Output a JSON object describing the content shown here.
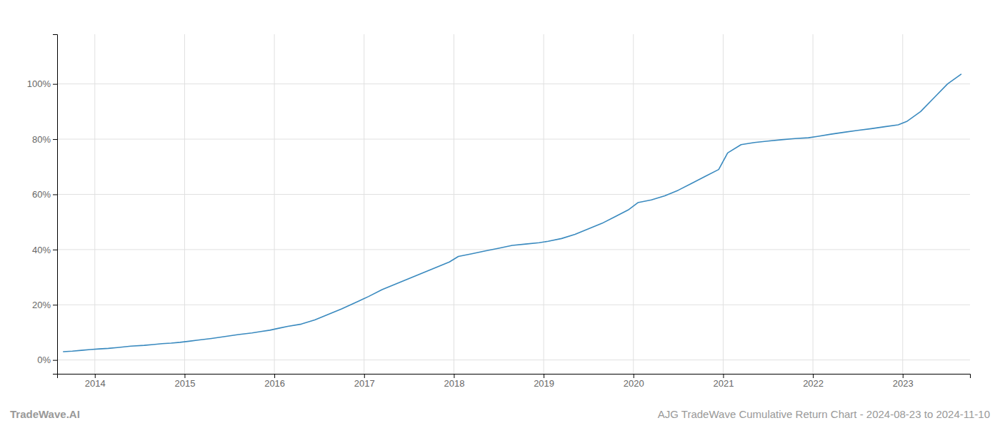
{
  "chart_data": {
    "type": "line",
    "title": "AJG TradeWave Cumulative Return Chart - 2024-08-23 to 2024-11-10",
    "annotations": [
      "TradeWave.AI"
    ],
    "color": "#3a8abf",
    "grid": true,
    "x": [
      2013.65,
      2013.75,
      2013.85,
      2013.95,
      2014.05,
      2014.15,
      2014.25,
      2014.4,
      2014.55,
      2014.65,
      2014.75,
      2014.85,
      2014.95,
      2015.05,
      2015.15,
      2015.3,
      2015.45,
      2015.6,
      2015.75,
      2015.85,
      2015.95,
      2016.05,
      2016.15,
      2016.3,
      2016.45,
      2016.6,
      2016.75,
      2016.85,
      2016.95,
      2017.05,
      2017.2,
      2017.35,
      2017.5,
      2017.65,
      2017.8,
      2017.95,
      2018.05,
      2018.2,
      2018.35,
      2018.5,
      2018.65,
      2018.8,
      2018.95,
      2019.05,
      2019.2,
      2019.35,
      2019.5,
      2019.65,
      2019.8,
      2019.95,
      2020.05,
      2020.2,
      2020.35,
      2020.5,
      2020.65,
      2020.8,
      2020.95,
      2021.05,
      2021.2,
      2021.35,
      2021.5,
      2021.65,
      2021.8,
      2021.95,
      2022.05,
      2022.2,
      2022.35,
      2022.5,
      2022.65,
      2022.8,
      2022.95,
      2023.05,
      2023.2,
      2023.35,
      2023.5,
      2023.65
    ],
    "values": [
      3.0,
      3.2,
      3.5,
      3.8,
      4.0,
      4.2,
      4.5,
      5.0,
      5.3,
      5.6,
      5.9,
      6.1,
      6.4,
      6.8,
      7.2,
      7.8,
      8.5,
      9.2,
      9.8,
      10.3,
      10.8,
      11.5,
      12.2,
      13.0,
      14.5,
      16.5,
      18.5,
      20.0,
      21.5,
      23.0,
      25.5,
      27.5,
      29.5,
      31.5,
      33.5,
      35.5,
      37.5,
      38.5,
      39.5,
      40.5,
      41.5,
      42.0,
      42.5,
      43.0,
      44.0,
      45.5,
      47.5,
      49.5,
      52.0,
      54.5,
      57.0,
      58.0,
      59.5,
      61.5,
      64.0,
      66.5,
      69.0,
      75.0,
      78.0,
      78.8,
      79.3,
      79.8,
      80.2,
      80.5,
      81.0,
      81.8,
      82.5,
      83.2,
      83.8,
      84.5,
      85.2,
      86.5,
      90.0,
      95.0,
      100.0,
      103.5
    ],
    "xlim": [
      2013.58,
      2023.75
    ],
    "xticks": [
      2014,
      2015,
      2016,
      2017,
      2018,
      2019,
      2020,
      2021,
      2022,
      2023
    ],
    "ylim": [
      -5,
      118
    ],
    "yticks": [
      {
        "value": 0,
        "label": "0%"
      },
      {
        "value": 20,
        "label": "20%"
      },
      {
        "value": 40,
        "label": "40%"
      },
      {
        "value": 60,
        "label": "60%"
      },
      {
        "value": 80,
        "label": "80%"
      },
      {
        "value": 100,
        "label": "100%"
      }
    ]
  }
}
